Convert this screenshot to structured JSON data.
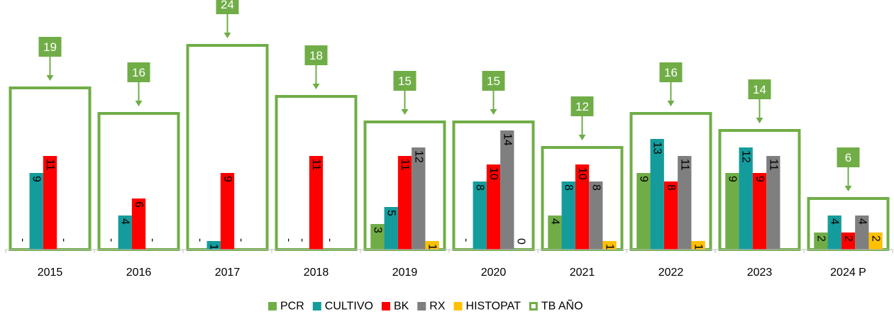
{
  "chart_data": {
    "type": "bar",
    "categories": [
      "2015",
      "2016",
      "2017",
      "2018",
      "2019",
      "2020",
      "2021",
      "2022",
      "2023",
      "2024 P"
    ],
    "series": [
      {
        "name": "PCR",
        "color": "#70ad47",
        "values": [
          0,
          0,
          0,
          0,
          3,
          0,
          4,
          9,
          9,
          2
        ],
        "value_labels": [
          "-",
          "-",
          "-",
          "-",
          "3",
          "-",
          "4",
          "9",
          "9",
          "2"
        ]
      },
      {
        "name": "CULTIVO",
        "color": "#149c9c",
        "values": [
          9,
          4,
          1,
          0,
          5,
          8,
          8,
          13,
          12,
          4
        ],
        "value_labels": [
          "9",
          "4",
          "1",
          "-",
          "5",
          "8",
          "8",
          "13",
          "12",
          "4"
        ]
      },
      {
        "name": "BK",
        "color": "#ff0000",
        "values": [
          11,
          6,
          9,
          11,
          11,
          10,
          10,
          8,
          9,
          2
        ],
        "value_labels": [
          "11",
          "6",
          "9",
          "11",
          "11",
          "10",
          "10",
          "8",
          "9",
          "2"
        ]
      },
      {
        "name": "RX",
        "color": "#7f7f7f",
        "values": [
          0,
          0,
          0,
          0,
          12,
          14,
          8,
          11,
          11,
          4
        ],
        "value_labels": [
          "-",
          "-",
          "-",
          "-",
          "12",
          "14",
          "8",
          "11",
          "11",
          "4"
        ]
      },
      {
        "name": "HISTOPAT",
        "color": "#ffc000",
        "values": [
          null,
          null,
          null,
          null,
          1,
          0,
          1,
          1,
          null,
          2
        ],
        "value_labels": [
          null,
          null,
          null,
          null,
          "1",
          "0",
          "1",
          "1",
          null,
          "2"
        ]
      }
    ],
    "totals": {
      "name": "TB AÑO",
      "color": "#70ad47",
      "values": [
        19,
        16,
        24,
        18,
        15,
        15,
        12,
        16,
        14,
        6
      ]
    },
    "ylim": [
      0,
      25
    ]
  }
}
